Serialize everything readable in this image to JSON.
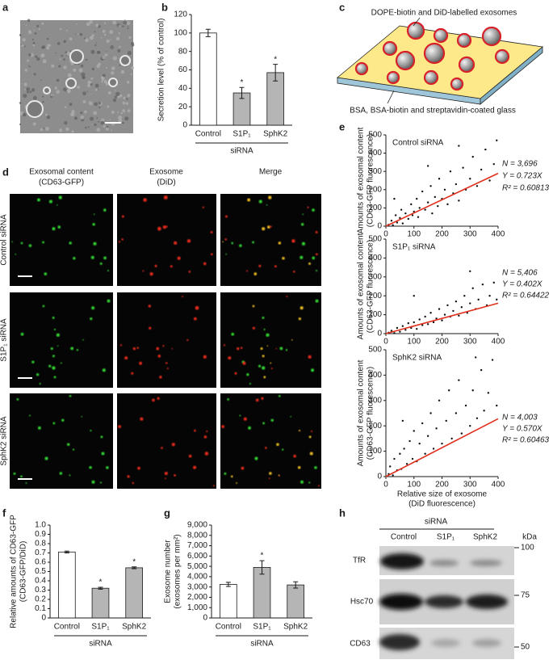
{
  "panel_labels": [
    "a",
    "b",
    "c",
    "d",
    "e",
    "f",
    "g",
    "h"
  ],
  "panel_c": {
    "top_label": "DOPE-biotin and DiD-labelled exosomes",
    "bottom_label": "BSA, BSA-biotin and streptavidin-coated glass"
  },
  "panel_d": {
    "column_headers": [
      [
        "Exosomal content",
        "(CD63-GFP)"
      ],
      [
        "Exosome",
        "(DiD)"
      ],
      [
        "Merge"
      ]
    ],
    "row_labels": [
      "Control siRNA",
      "S1P₁ siRNA",
      "SphK2 siRNA"
    ]
  },
  "panel_h": {
    "group_label": "siRNA",
    "lanes": [
      "Control",
      "S1P₁",
      "SphK2"
    ],
    "unit": "kDa",
    "proteins": [
      "TfR",
      "Hsc70",
      "CD63"
    ],
    "markers": [
      100,
      75,
      50
    ]
  },
  "chart_data": [
    {
      "type": "bar",
      "ylabel": [
        "Secretion level (% of control)"
      ],
      "categories": [
        "Control",
        "S1P₁",
        "SphK2"
      ],
      "values": [
        100,
        35,
        57
      ],
      "errors": [
        4,
        6,
        9
      ],
      "annotations": [
        null,
        "*",
        "*"
      ],
      "colors": [
        "#ffffff",
        "#b5b5b5",
        "#b5b5b5"
      ],
      "group_label": "siRNA",
      "ylim": [
        0,
        120
      ],
      "yticks": [
        0,
        20,
        40,
        60,
        80,
        100,
        120
      ]
    },
    {
      "type": "scatter",
      "title": "Control siRNA",
      "ylabel": [
        "Amounts of exosomal content",
        "(CD63-GFP fluorescence)"
      ],
      "stats": [
        "N = 3,696",
        "Y = 0.723X",
        "R² = 0.60813"
      ],
      "color": "#111111",
      "fit_color": "#e0301e",
      "xlim": [
        0,
        400
      ],
      "ylim": [
        0,
        500
      ],
      "xticks": [
        0,
        100,
        200,
        300,
        400
      ],
      "yticks": [
        0,
        100,
        200,
        300,
        400,
        500
      ],
      "x": [
        10,
        20,
        25,
        35,
        40,
        50,
        55,
        60,
        70,
        80,
        90,
        95,
        100,
        110,
        115,
        120,
        130,
        140,
        150,
        160,
        165,
        175,
        185,
        190,
        200,
        210,
        220,
        230,
        240,
        250,
        260,
        275,
        285,
        300,
        310,
        325,
        340,
        355,
        370,
        385,
        395,
        30,
        150,
        260
      ],
      "y": [
        8,
        30,
        5,
        60,
        20,
        45,
        90,
        15,
        70,
        40,
        120,
        60,
        80,
        150,
        50,
        100,
        190,
        90,
        130,
        220,
        70,
        160,
        110,
        260,
        150,
        200,
        120,
        300,
        180,
        230,
        140,
        320,
        200,
        260,
        380,
        220,
        310,
        420,
        250,
        340,
        470,
        150,
        330,
        440
      ],
      "fit": {
        "x": [
          0,
          400
        ],
        "y": [
          0,
          289.2
        ]
      }
    },
    {
      "type": "scatter",
      "title": "S1P₁ siRNA",
      "ylabel": [
        "Amounts of exosomal content",
        "(CD63-GFP fluorescence)"
      ],
      "stats": [
        "N = 5,406",
        "Y = 0.402X",
        "R² = 0.64422"
      ],
      "color": "#111111",
      "fit_color": "#e0301e",
      "xlim": [
        0,
        400
      ],
      "ylim": [
        0,
        500
      ],
      "xticks": [
        0,
        100,
        200,
        300,
        400
      ],
      "yticks": [
        0,
        100,
        200,
        300,
        400,
        500
      ],
      "x": [
        10,
        20,
        30,
        40,
        50,
        60,
        70,
        80,
        90,
        100,
        110,
        120,
        130,
        140,
        150,
        160,
        170,
        180,
        190,
        200,
        210,
        220,
        230,
        240,
        250,
        260,
        270,
        280,
        290,
        300,
        310,
        320,
        330,
        345,
        360,
        370,
        385,
        395,
        100,
        300
      ],
      "y": [
        5,
        15,
        3,
        30,
        10,
        40,
        20,
        55,
        30,
        60,
        25,
        75,
        45,
        90,
        50,
        110,
        60,
        80,
        130,
        70,
        100,
        150,
        90,
        120,
        170,
        95,
        140,
        200,
        110,
        160,
        240,
        130,
        180,
        260,
        150,
        200,
        270,
        180,
        200,
        330
      ],
      "fit": {
        "x": [
          0,
          400
        ],
        "y": [
          0,
          160.8
        ]
      }
    },
    {
      "type": "scatter",
      "title": "SphK2 siRNA",
      "ylabel": [
        "Amounts of exosomal content",
        "(CD63-GFP fluorescence)"
      ],
      "xlabel": [
        "Relative size of exosome",
        "(DiD fluorescence)"
      ],
      "stats": [
        "N = 4,003",
        "Y = 0.570X",
        "R² = 0.60463"
      ],
      "color": "#111111",
      "fit_color": "#e0301e",
      "xlim": [
        0,
        400
      ],
      "ylim": [
        0,
        500
      ],
      "xticks": [
        0,
        100,
        200,
        300,
        400
      ],
      "yticks": [
        0,
        100,
        200,
        300,
        400,
        500
      ],
      "x": [
        10,
        15,
        25,
        30,
        40,
        50,
        55,
        65,
        75,
        85,
        95,
        100,
        110,
        120,
        130,
        140,
        150,
        160,
        170,
        180,
        190,
        200,
        215,
        225,
        235,
        250,
        260,
        270,
        285,
        300,
        310,
        325,
        340,
        350,
        365,
        380,
        395,
        60,
        320
      ],
      "y": [
        10,
        40,
        5,
        70,
        25,
        90,
        30,
        110,
        50,
        140,
        70,
        180,
        60,
        130,
        210,
        90,
        160,
        250,
        110,
        190,
        300,
        130,
        220,
        340,
        150,
        250,
        380,
        170,
        280,
        200,
        340,
        230,
        420,
        260,
        330,
        460,
        280,
        220,
        470
      ],
      "fit": {
        "x": [
          0,
          400
        ],
        "y": [
          0,
          228
        ]
      }
    },
    {
      "type": "bar",
      "ylabel": [
        "Relative amounts of CD63-GFP",
        "(CD63-GFP/DiD)"
      ],
      "categories": [
        "Control",
        "S1P₁",
        "SphK2"
      ],
      "values": [
        0.71,
        0.32,
        0.54
      ],
      "errors": [
        0.01,
        0.01,
        0.01
      ],
      "annotations": [
        null,
        "*",
        "*"
      ],
      "colors": [
        "#ffffff",
        "#b5b5b5",
        "#b5b5b5"
      ],
      "group_label": "siRNA",
      "ylim": [
        0,
        1
      ],
      "yticks": [
        0,
        0.1,
        0.2,
        0.3,
        0.4,
        0.5,
        0.6,
        0.7,
        0.8,
        0.9,
        {
          "value": 1,
          "label": "1.0"
        }
      ]
    },
    {
      "type": "bar",
      "ylabel": [
        "Exosome number",
        "(exosomes per mm²)"
      ],
      "categories": [
        "Control",
        "S1P₁",
        "SphK2"
      ],
      "values": [
        3250,
        4900,
        3200
      ],
      "errors": [
        200,
        650,
        300
      ],
      "annotations": [
        null,
        "*",
        null
      ],
      "colors": [
        "#ffffff",
        "#b5b5b5",
        "#b5b5b5"
      ],
      "group_label": "siRNA",
      "ylim": [
        0,
        9000
      ],
      "yticks": [
        0,
        {
          "value": 1000,
          "label": "1,000"
        },
        {
          "value": 2000,
          "label": "2,000"
        },
        {
          "value": 3000,
          "label": "3,000"
        },
        {
          "value": 4000,
          "label": "4,000"
        },
        {
          "value": 5000,
          "label": "5,000"
        },
        {
          "value": 6000,
          "label": "6,000"
        },
        {
          "value": 7000,
          "label": "7,000"
        },
        {
          "value": 8000,
          "label": "8,000"
        },
        {
          "value": 9000,
          "label": "9,000"
        }
      ]
    }
  ]
}
